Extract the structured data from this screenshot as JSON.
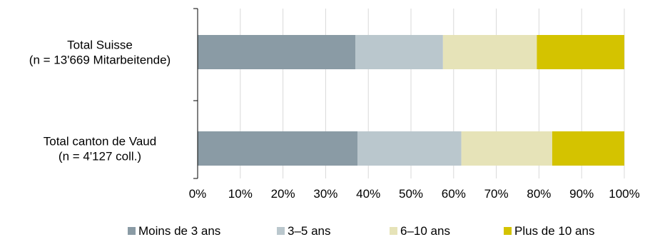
{
  "chart_data": {
    "type": "bar",
    "orientation": "horizontal",
    "stacked": true,
    "categories": [
      [
        "Total Suisse",
        "(n = 13'669 Mitarbeitende)"
      ],
      [
        "Total canton de Vaud",
        "(n = 4'127 coll.)"
      ]
    ],
    "series": [
      {
        "name": "Moins de 3 ans",
        "color": "#8a9ba5",
        "values": [
          37,
          37.5
        ]
      },
      {
        "name": "3–5 ans",
        "color": "#bac7cd",
        "values": [
          20.5,
          24.3
        ]
      },
      {
        "name": "6–10 ans",
        "color": "#e6e3b8",
        "values": [
          22.0,
          21.3
        ]
      },
      {
        "name": "Plus de 10 ans",
        "color": "#d4c300",
        "values": [
          20.5,
          16.9
        ]
      }
    ],
    "xlim": [
      0,
      100
    ],
    "xticks": [
      "0%",
      "10%",
      "20%",
      "30%",
      "40%",
      "50%",
      "60%",
      "70%",
      "80%",
      "90%",
      "100%"
    ],
    "grid": true,
    "legend_position": "bottom"
  }
}
